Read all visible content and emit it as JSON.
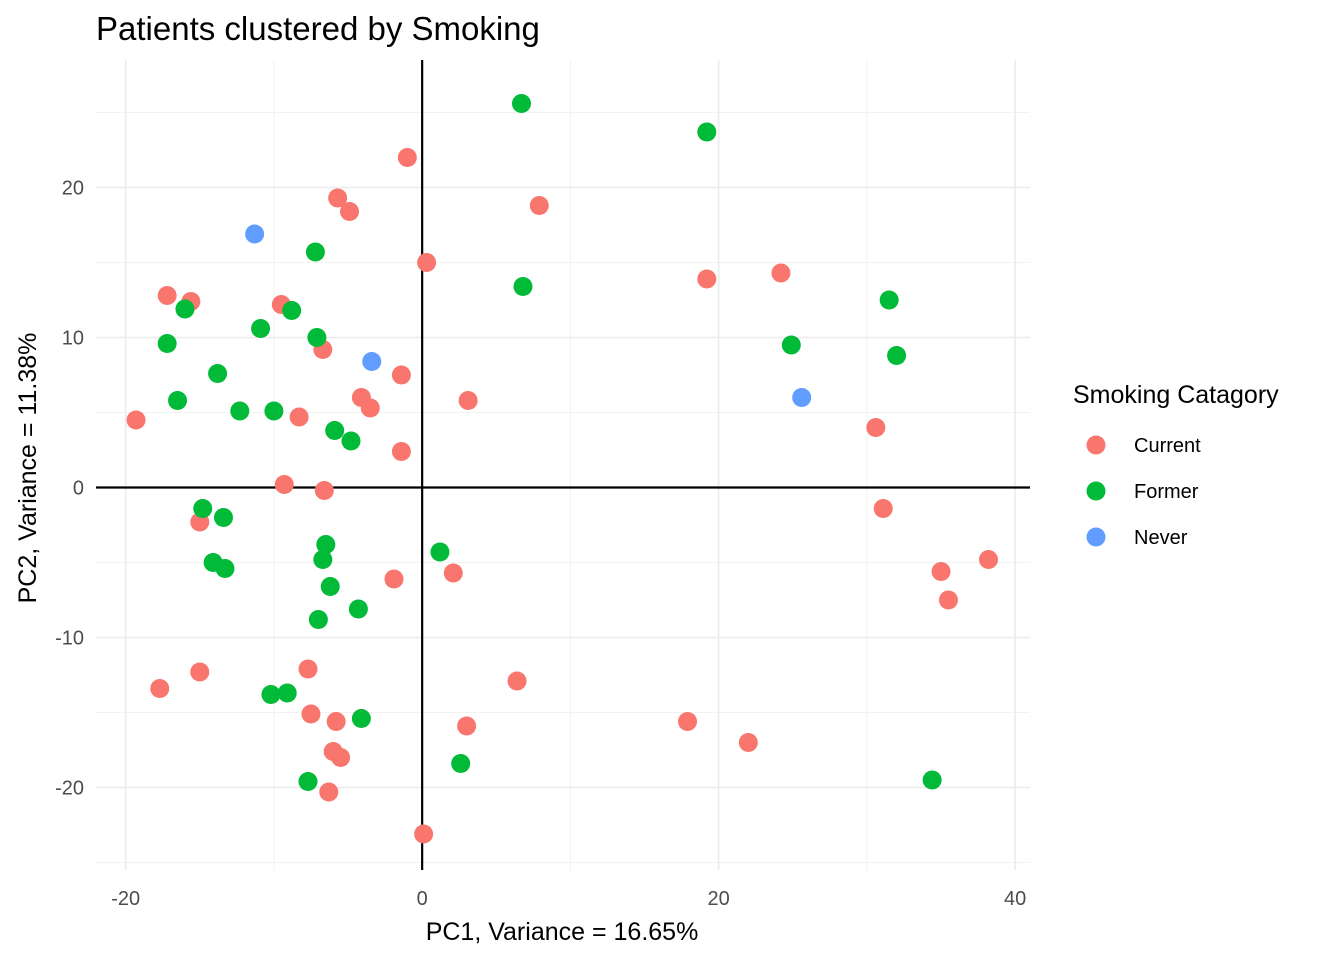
{
  "chart_data": {
    "type": "scatter",
    "title": "Patients clustered by Smoking",
    "xlabel": "PC1, Variance = 16.65%",
    "ylabel": "PC2, Variance = 11.38%",
    "xlim": [
      -22,
      41
    ],
    "ylim": [
      -25.5,
      28.5
    ],
    "x_ticks": [
      -20,
      0,
      20,
      40
    ],
    "y_ticks": [
      -20,
      -10,
      0,
      10,
      20
    ],
    "x_tick_labels": [
      "-20",
      "0",
      "20",
      "40"
    ],
    "y_tick_labels": [
      "-20",
      "-10",
      "0",
      "10",
      "20"
    ],
    "reference_lines": {
      "x": 0,
      "y": 0
    },
    "grid": true,
    "legend": {
      "title": "Smoking Catagory",
      "position": "right"
    },
    "series": [
      {
        "name": "Current",
        "color": "#F8766D",
        "points": [
          [
            -1.0,
            22.0
          ],
          [
            -5.7,
            19.3
          ],
          [
            -4.9,
            18.4
          ],
          [
            7.9,
            18.8
          ],
          [
            0.3,
            15.0
          ],
          [
            19.2,
            13.9
          ],
          [
            24.2,
            14.3
          ],
          [
            -17.2,
            12.8
          ],
          [
            -15.6,
            12.4
          ],
          [
            -9.5,
            12.2
          ],
          [
            -6.7,
            9.2
          ],
          [
            -1.4,
            7.5
          ],
          [
            -4.1,
            6.0
          ],
          [
            -3.5,
            5.3
          ],
          [
            3.1,
            5.8
          ],
          [
            -19.3,
            4.5
          ],
          [
            -8.3,
            4.7
          ],
          [
            30.6,
            4.0
          ],
          [
            -1.4,
            2.4
          ],
          [
            -9.3,
            0.2
          ],
          [
            -6.6,
            -0.2
          ],
          [
            31.1,
            -1.4
          ],
          [
            -15.0,
            -2.3
          ],
          [
            35.0,
            -5.6
          ],
          [
            38.2,
            -4.8
          ],
          [
            2.1,
            -5.7
          ],
          [
            -1.9,
            -6.1
          ],
          [
            35.5,
            -7.5
          ],
          [
            -7.7,
            -12.1
          ],
          [
            -15.0,
            -12.3
          ],
          [
            -17.7,
            -13.4
          ],
          [
            6.4,
            -12.9
          ],
          [
            -7.5,
            -15.1
          ],
          [
            -5.8,
            -15.6
          ],
          [
            3.0,
            -15.9
          ],
          [
            17.9,
            -15.6
          ],
          [
            22.0,
            -17.0
          ],
          [
            -6.0,
            -17.6
          ],
          [
            -5.5,
            -18.0
          ],
          [
            -6.3,
            -20.3
          ],
          [
            0.1,
            -23.1
          ]
        ]
      },
      {
        "name": "Former",
        "color": "#00BA38",
        "points": [
          [
            6.7,
            25.6
          ],
          [
            19.2,
            23.7
          ],
          [
            -7.2,
            15.7
          ],
          [
            6.8,
            13.4
          ],
          [
            31.5,
            12.5
          ],
          [
            -16.0,
            11.9
          ],
          [
            -10.9,
            10.6
          ],
          [
            -8.8,
            11.8
          ],
          [
            -7.1,
            10.0
          ],
          [
            -17.2,
            9.6
          ],
          [
            24.9,
            9.5
          ],
          [
            32.0,
            8.8
          ],
          [
            -13.8,
            7.6
          ],
          [
            -16.5,
            5.8
          ],
          [
            -12.3,
            5.1
          ],
          [
            -10.0,
            5.1
          ],
          [
            -5.9,
            3.8
          ],
          [
            -4.8,
            3.1
          ],
          [
            -14.8,
            -1.4
          ],
          [
            -13.4,
            -2.0
          ],
          [
            1.2,
            -4.3
          ],
          [
            -6.5,
            -3.8
          ],
          [
            -6.7,
            -4.8
          ],
          [
            -14.1,
            -5.0
          ],
          [
            -13.3,
            -5.4
          ],
          [
            -6.2,
            -6.6
          ],
          [
            -4.3,
            -8.1
          ],
          [
            -7.0,
            -8.8
          ],
          [
            -10.2,
            -13.8
          ],
          [
            -9.1,
            -13.7
          ],
          [
            -4.1,
            -15.4
          ],
          [
            2.6,
            -18.4
          ],
          [
            -7.7,
            -19.6
          ],
          [
            34.4,
            -19.5
          ]
        ]
      },
      {
        "name": "Never",
        "color": "#619CFF",
        "points": [
          [
            -11.3,
            16.9
          ],
          [
            -3.4,
            8.4
          ],
          [
            25.6,
            6.0
          ]
        ]
      }
    ]
  }
}
